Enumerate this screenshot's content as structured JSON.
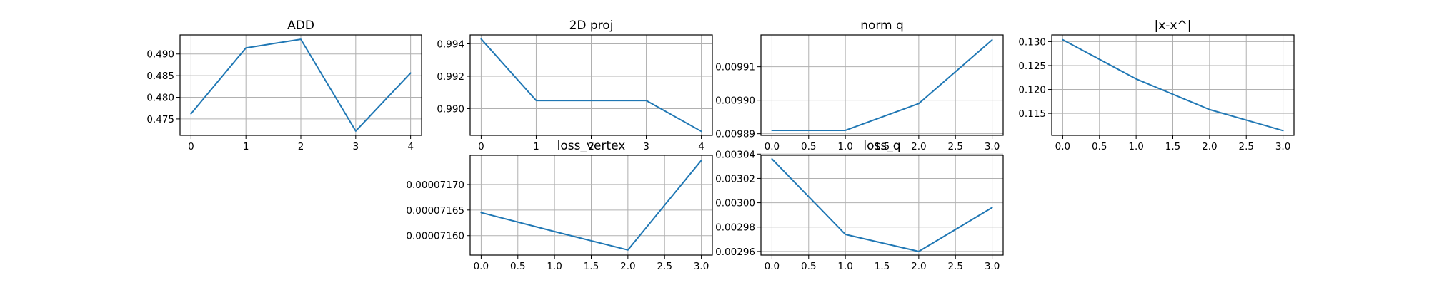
{
  "colors": {
    "series": "#1f77b4"
  },
  "chart_data": [
    {
      "type": "line",
      "title": "ADD",
      "x": [
        0,
        1,
        2,
        3,
        4
      ],
      "y": [
        0.4762,
        0.4914,
        0.4934,
        0.4722,
        0.4856
      ],
      "xlim": [
        -0.2,
        4.2
      ],
      "ylim": [
        0.4712,
        0.4944
      ],
      "xticks": [
        0,
        1,
        2,
        3,
        4
      ],
      "xtick_labels": [
        "0",
        "1",
        "2",
        "3",
        "4"
      ],
      "yticks": [
        0.475,
        0.48,
        0.485,
        0.49
      ],
      "ytick_labels": [
        "0.475",
        "0.480",
        "0.485",
        "0.490"
      ],
      "grid": true
    },
    {
      "type": "line",
      "title": "2D proj",
      "x": [
        0,
        1,
        2,
        3,
        4
      ],
      "y": [
        0.9943,
        0.9905,
        0.9905,
        0.9905,
        0.9886
      ],
      "xlim": [
        -0.2,
        4.2
      ],
      "ylim": [
        0.98835,
        0.99455
      ],
      "xticks": [
        0,
        1,
        2,
        3,
        4
      ],
      "xtick_labels": [
        "0",
        "1",
        "2",
        "3",
        "4"
      ],
      "yticks": [
        0.99,
        0.992,
        0.994
      ],
      "ytick_labels": [
        "0.990",
        "0.992",
        "0.994"
      ],
      "grid": true
    },
    {
      "type": "line",
      "title": "norm q",
      "x": [
        0,
        1,
        2,
        3
      ],
      "y": [
        0.009891,
        0.009891,
        0.009899,
        0.009918
      ],
      "xlim": [
        -0.15,
        3.15
      ],
      "ylim": [
        0.0098895,
        0.0099195
      ],
      "xticks": [
        0,
        0.5,
        1,
        1.5,
        2,
        2.5,
        3
      ],
      "xtick_labels": [
        "0.0",
        "0.5",
        "1.0",
        "1.5",
        "2.0",
        "2.5",
        "3.0"
      ],
      "yticks": [
        0.00989,
        0.0099,
        0.00991
      ],
      "ytick_labels": [
        "0.00989",
        "0.00990",
        "0.00991"
      ],
      "grid": true
    },
    {
      "type": "line",
      "title": "|x-x^|",
      "x": [
        0,
        1,
        2,
        3
      ],
      "y": [
        0.1304,
        0.1222,
        0.1158,
        0.1114
      ],
      "xlim": [
        -0.15,
        3.15
      ],
      "ylim": [
        0.1104,
        0.1314
      ],
      "xticks": [
        0,
        0.5,
        1,
        1.5,
        2,
        2.5,
        3
      ],
      "xtick_labels": [
        "0.0",
        "0.5",
        "1.0",
        "1.5",
        "2.0",
        "2.5",
        "3.0"
      ],
      "yticks": [
        0.115,
        0.12,
        0.125,
        0.13
      ],
      "ytick_labels": [
        "0.115",
        "0.120",
        "0.125",
        "0.130"
      ],
      "grid": true
    },
    {
      "type": "line",
      "title": "loss_vertex",
      "x": [
        0,
        1,
        2,
        3
      ],
      "y": [
        7.1645e-05,
        7.1608e-05,
        7.1572e-05,
        7.1747e-05
      ],
      "xlim": [
        -0.15,
        3.15
      ],
      "ylim": [
        7.1562e-05,
        7.1757e-05
      ],
      "xticks": [
        0,
        0.5,
        1,
        1.5,
        2,
        2.5,
        3
      ],
      "xtick_labels": [
        "0.0",
        "0.5",
        "1.0",
        "1.5",
        "2.0",
        "2.5",
        "3.0"
      ],
      "yticks": [
        7.16e-05,
        7.165e-05,
        7.17e-05
      ],
      "ytick_labels": [
        "0.00007160",
        "0.00007165",
        "0.00007170"
      ],
      "grid": true
    },
    {
      "type": "line",
      "title": "loss_q",
      "x": [
        0,
        1,
        2,
        3
      ],
      "y": [
        0.003036,
        0.002974,
        0.00296,
        0.002996
      ],
      "xlim": [
        -0.15,
        3.15
      ],
      "ylim": [
        0.002957,
        0.003039
      ],
      "xticks": [
        0,
        0.5,
        1,
        1.5,
        2,
        2.5,
        3
      ],
      "xtick_labels": [
        "0.0",
        "0.5",
        "1.0",
        "1.5",
        "2.0",
        "2.5",
        "3.0"
      ],
      "yticks": [
        0.00296,
        0.00298,
        0.003,
        0.00302,
        0.00304
      ],
      "ytick_labels": [
        "0.00296",
        "0.00298",
        "0.00300",
        "0.00302",
        "0.00304"
      ],
      "grid": true
    }
  ]
}
